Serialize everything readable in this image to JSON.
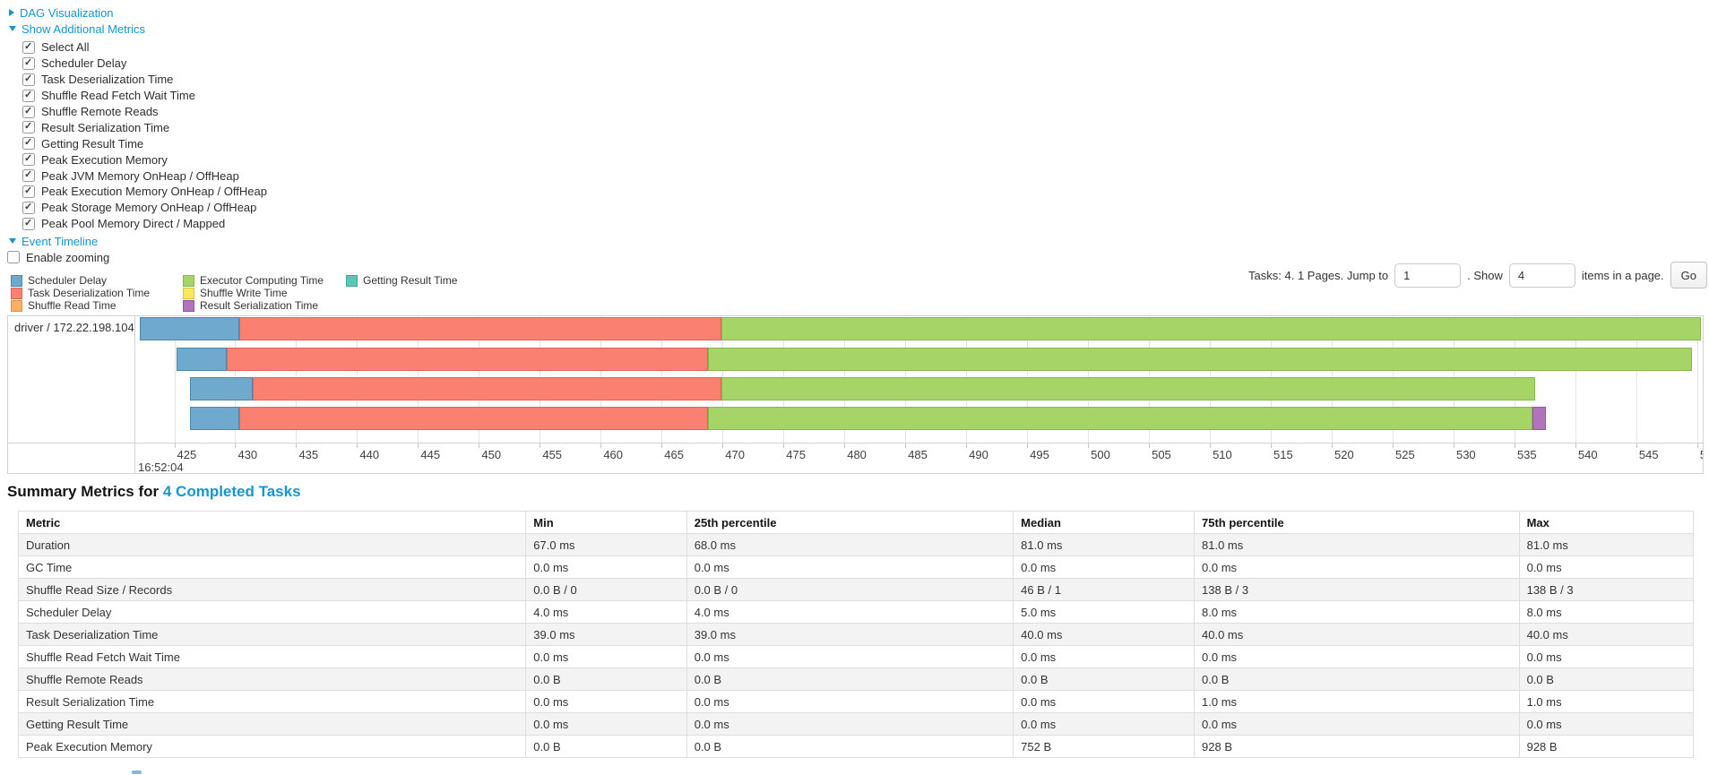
{
  "controls": {
    "dag_label": "DAG Visualization",
    "metrics_label": "Show Additional Metrics",
    "timeline_label": "Event Timeline",
    "enable_zooming_label": "Enable zooming",
    "checkboxes": [
      {
        "label": "Select All",
        "checked": true
      },
      {
        "label": "Scheduler Delay",
        "checked": true
      },
      {
        "label": "Task Deserialization Time",
        "checked": true
      },
      {
        "label": "Shuffle Read Fetch Wait Time",
        "checked": true
      },
      {
        "label": "Shuffle Remote Reads",
        "checked": true
      },
      {
        "label": "Result Serialization Time",
        "checked": true
      },
      {
        "label": "Getting Result Time",
        "checked": true
      },
      {
        "label": "Peak Execution Memory",
        "checked": true
      },
      {
        "label": "Peak JVM Memory OnHeap / OffHeap",
        "checked": true
      },
      {
        "label": "Peak Execution Memory OnHeap / OffHeap",
        "checked": true
      },
      {
        "label": "Peak Storage Memory OnHeap / OffHeap",
        "checked": true
      },
      {
        "label": "Peak Pool Memory Direct / Mapped",
        "checked": true
      }
    ],
    "enable_zooming_checked": false
  },
  "legend": {
    "column_offsets": [
      0,
      192,
      374
    ],
    "columns": [
      [
        {
          "label": "Scheduler Delay",
          "metric": "scheduler-delay"
        },
        {
          "label": "Task Deserialization Time",
          "metric": "task-deserialization"
        },
        {
          "label": "Shuffle Read Time",
          "metric": "shuffle-read"
        }
      ],
      [
        {
          "label": "Executor Computing Time",
          "metric": "executor-computing"
        },
        {
          "label": "Shuffle Write Time",
          "metric": "shuffle-write"
        },
        {
          "label": "Result Serialization Time",
          "metric": "result-serialization"
        }
      ],
      [
        {
          "label": "Getting Result Time",
          "metric": "getting-result"
        }
      ]
    ]
  },
  "pagination": {
    "text_before": "Tasks: 4. 1 Pages. Jump to",
    "jump_value": "1",
    "text_mid": ". Show",
    "show_value": "4",
    "text_after": "items in a page.",
    "go_label": "Go"
  },
  "chart_data": {
    "type": "timeline-gantt",
    "group_label": "driver / 172.22.198.104",
    "axis": {
      "min": 421.8,
      "max": 550.45,
      "tick_start": 425,
      "tick_end": 550,
      "tick_step": 5,
      "time_label": "16:52:04",
      "units": "ms"
    },
    "colors": {
      "scheduler-delay": "#6FA9CE",
      "task-deserialization": "#FA8072",
      "shuffle-read": "#FBAF63",
      "executor-computing": "#A6D467",
      "shuffle-write": "#F6E860",
      "result-serialization": "#B372BE",
      "getting-result": "#5FC6B5"
    },
    "borders": {
      "scheduler-delay": "#4D88AC",
      "task-deserialization": "#DC6458",
      "shuffle-read": "#DE9145",
      "executor-computing": "#86B84B",
      "shuffle-write": "#D5C944",
      "result-serialization": "#96549F",
      "getting-result": "#43A492"
    },
    "tasks": [
      {
        "row": 1,
        "start": 422.2,
        "segments": [
          {
            "metric": "scheduler-delay",
            "duration_ms": 8.1
          },
          {
            "metric": "task-deserialization",
            "duration_ms": 39.6
          },
          {
            "metric": "executor-computing",
            "duration_ms": 80.4
          }
        ]
      },
      {
        "row": 2,
        "start": 425.2,
        "segments": [
          {
            "metric": "scheduler-delay",
            "duration_ms": 4.1
          },
          {
            "metric": "task-deserialization",
            "duration_ms": 39.5
          },
          {
            "metric": "executor-computing",
            "duration_ms": 80.8
          }
        ]
      },
      {
        "row": 3,
        "start": 426.3,
        "segments": [
          {
            "metric": "scheduler-delay",
            "duration_ms": 5.1
          },
          {
            "metric": "task-deserialization",
            "duration_ms": 38.5
          },
          {
            "metric": "executor-computing",
            "duration_ms": 66.8
          }
        ]
      },
      {
        "row": 4,
        "start": 426.3,
        "segments": [
          {
            "metric": "scheduler-delay",
            "duration_ms": 4.0
          },
          {
            "metric": "task-deserialization",
            "duration_ms": 38.5
          },
          {
            "metric": "executor-computing",
            "duration_ms": 67.7
          },
          {
            "metric": "result-serialization",
            "duration_ms": 1.1
          }
        ]
      }
    ]
  },
  "summary": {
    "title_prefix": "Summary Metrics for",
    "title_link": "4 Completed Tasks",
    "table": {
      "headers": [
        "Metric",
        "Min",
        "25th percentile",
        "Median",
        "75th percentile",
        "Max"
      ],
      "col_widths_pct": [
        30.3,
        9.6,
        19.5,
        10.8,
        19.4,
        10.4
      ],
      "rows": [
        [
          "Duration",
          "67.0 ms",
          "68.0 ms",
          "81.0 ms",
          "81.0 ms",
          "81.0 ms"
        ],
        [
          "GC Time",
          "0.0 ms",
          "0.0 ms",
          "0.0 ms",
          "0.0 ms",
          "0.0 ms"
        ],
        [
          "Shuffle Read Size / Records",
          "0.0 B / 0",
          "0.0 B / 0",
          "46 B / 1",
          "138 B / 3",
          "138 B / 3"
        ],
        [
          "Scheduler Delay",
          "4.0 ms",
          "4.0 ms",
          "5.0 ms",
          "8.0 ms",
          "8.0 ms"
        ],
        [
          "Task Deserialization Time",
          "39.0 ms",
          "39.0 ms",
          "40.0 ms",
          "40.0 ms",
          "40.0 ms"
        ],
        [
          "Shuffle Read Fetch Wait Time",
          "0.0 ms",
          "0.0 ms",
          "0.0 ms",
          "0.0 ms",
          "0.0 ms"
        ],
        [
          "Shuffle Remote Reads",
          "0.0 B",
          "0.0 B",
          "0.0 B",
          "0.0 B",
          "0.0 B"
        ],
        [
          "Result Serialization Time",
          "0.0 ms",
          "0.0 ms",
          "0.0 ms",
          "1.0 ms",
          "1.0 ms"
        ],
        [
          "Getting Result Time",
          "0.0 ms",
          "0.0 ms",
          "0.0 ms",
          "0.0 ms",
          "0.0 ms"
        ],
        [
          "Peak Execution Memory",
          "0.0 B",
          "0.0 B",
          "752 B",
          "928 B",
          "928 B"
        ]
      ]
    }
  }
}
